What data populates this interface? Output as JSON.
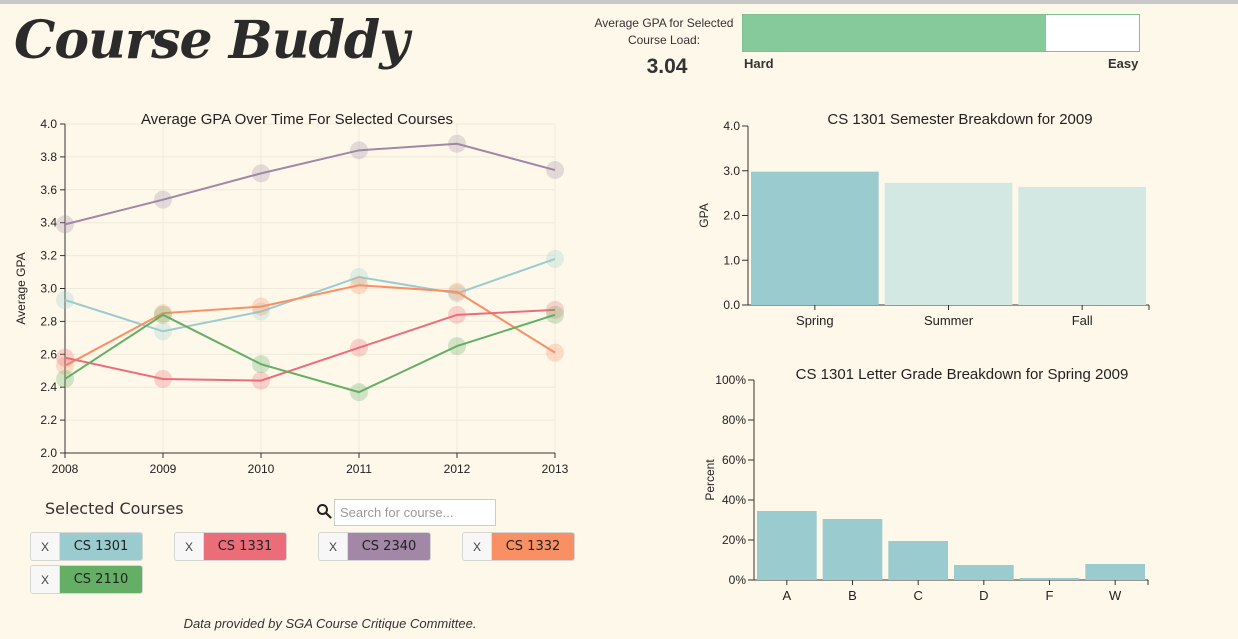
{
  "app": {
    "title": "Course Buddy"
  },
  "gpa_meter": {
    "label": "Average GPA for Selected Course Load:",
    "value": "3.04",
    "fill_fraction": 0.765,
    "hard_label": "Hard",
    "easy_label": "Easy",
    "fill_color": "#86ca9c"
  },
  "selected": {
    "title": "Selected Courses",
    "search_placeholder": "Search for course...",
    "remove_label": "X",
    "courses": [
      {
        "name": "CS 1301",
        "color": "#9acccf"
      },
      {
        "name": "CS 1331",
        "color": "#ec6d7a"
      },
      {
        "name": "CS 2340",
        "color": "#a387a6"
      },
      {
        "name": "CS 1332",
        "color": "#f89063"
      },
      {
        "name": "CS 2110",
        "color": "#65ae65"
      }
    ]
  },
  "footer": {
    "text": "Data provided by SGA Course Critique Committee."
  },
  "chart_data": [
    {
      "type": "line",
      "title": "Average GPA Over Time For Selected Courses",
      "xlabel": "",
      "ylabel": "Average GPA",
      "x": [
        2008,
        2009,
        2010,
        2011,
        2012,
        2013
      ],
      "ylim": [
        2.0,
        4.0
      ],
      "yticks": [
        "2.0",
        "2.2",
        "2.4",
        "2.6",
        "2.8",
        "3.0",
        "3.2",
        "3.4",
        "3.6",
        "3.8",
        "4.0"
      ],
      "grid": true,
      "series": [
        {
          "name": "CS 2340",
          "color": "#a387a6",
          "values": [
            3.39,
            3.54,
            3.7,
            3.84,
            3.88,
            3.72
          ]
        },
        {
          "name": "CS 1301",
          "color": "#9acccf",
          "values": [
            2.93,
            2.74,
            2.86,
            3.07,
            2.97,
            3.18
          ]
        },
        {
          "name": "CS 1332",
          "color": "#f89063",
          "values": [
            2.53,
            2.85,
            2.89,
            3.02,
            2.98,
            2.61
          ]
        },
        {
          "name": "CS 1331",
          "color": "#ec6d7a",
          "values": [
            2.58,
            2.45,
            2.44,
            2.64,
            2.84,
            2.87
          ]
        },
        {
          "name": "CS 2110",
          "color": "#65ae65",
          "values": [
            2.45,
            2.84,
            2.54,
            2.37,
            2.65,
            2.84
          ]
        }
      ]
    },
    {
      "type": "bar",
      "title": "CS 1301 Semester Breakdown for 2009",
      "xlabel": "",
      "ylabel": "GPA",
      "categories": [
        "Spring",
        "Summer",
        "Fall"
      ],
      "values": [
        2.98,
        2.73,
        2.64
      ],
      "colors": [
        "#9acccf",
        "#d4e8e3",
        "#d4e8e3"
      ],
      "ylim": [
        0,
        4.0
      ],
      "yticks": [
        "0.0",
        "1.0",
        "2.0",
        "3.0",
        "4.0"
      ]
    },
    {
      "type": "bar",
      "title": "CS 1301 Letter Grade Breakdown for Spring 2009",
      "xlabel": "",
      "ylabel": "Percent",
      "categories": [
        "A",
        "B",
        "C",
        "D",
        "F",
        "W"
      ],
      "values": [
        34.5,
        30.5,
        19.5,
        7.5,
        1.0,
        8.0
      ],
      "color": "#9acccf",
      "ylim": [
        0,
        100
      ],
      "yticks": [
        "0%",
        "20%",
        "40%",
        "60%",
        "80%",
        "100%"
      ]
    }
  ]
}
